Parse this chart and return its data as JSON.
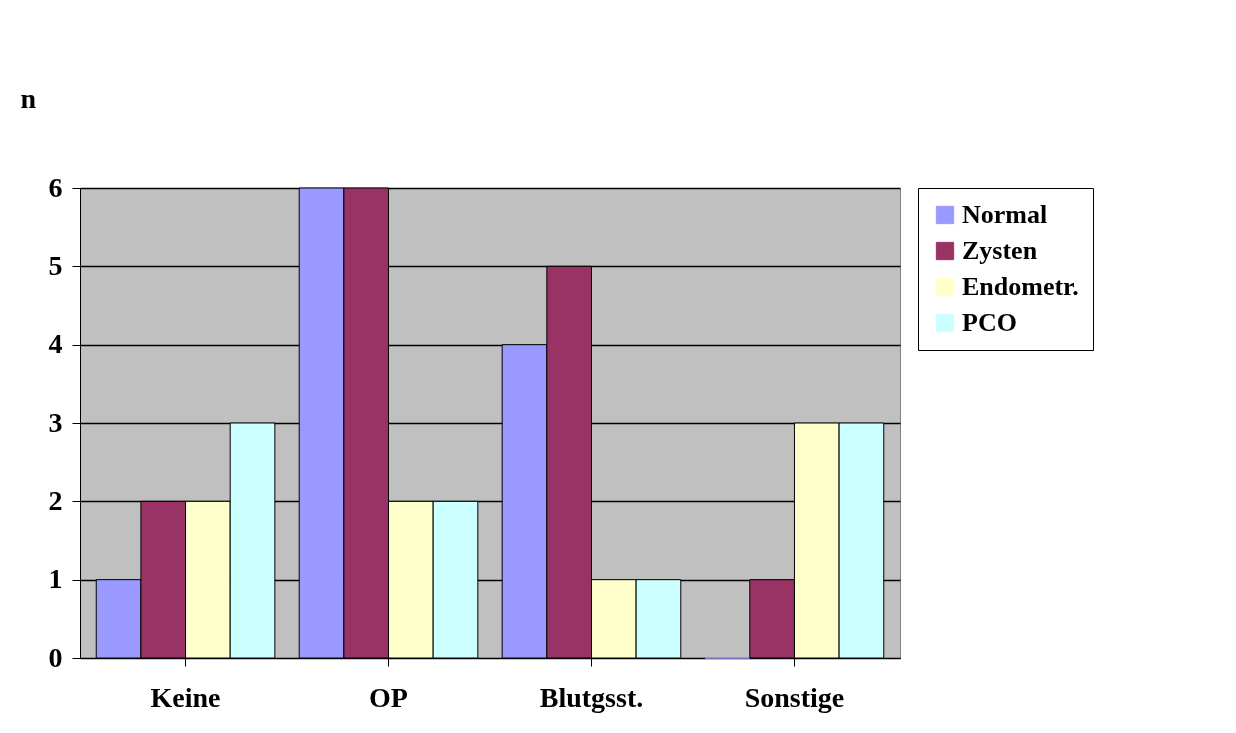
{
  "chart_data": {
    "type": "bar",
    "ylabel": "n",
    "categories": [
      "Keine",
      "OP",
      "Blutgsst.",
      "Sonstige"
    ],
    "series": [
      {
        "name": "Normal",
        "color": "#9999ff",
        "values": [
          1,
          6,
          4,
          0
        ]
      },
      {
        "name": "Zysten",
        "color": "#993366",
        "values": [
          2,
          6,
          5,
          1
        ]
      },
      {
        "name": "Endometr.",
        "color": "#ffffcc",
        "values": [
          2,
          2,
          1,
          3
        ]
      },
      {
        "name": "PCO",
        "color": "#ccffff",
        "values": [
          3,
          2,
          1,
          3
        ]
      }
    ],
    "ylim": [
      0,
      6
    ],
    "yticks": [
      0,
      1,
      2,
      3,
      4,
      5,
      6
    ],
    "grid": "y",
    "legend": "right"
  }
}
